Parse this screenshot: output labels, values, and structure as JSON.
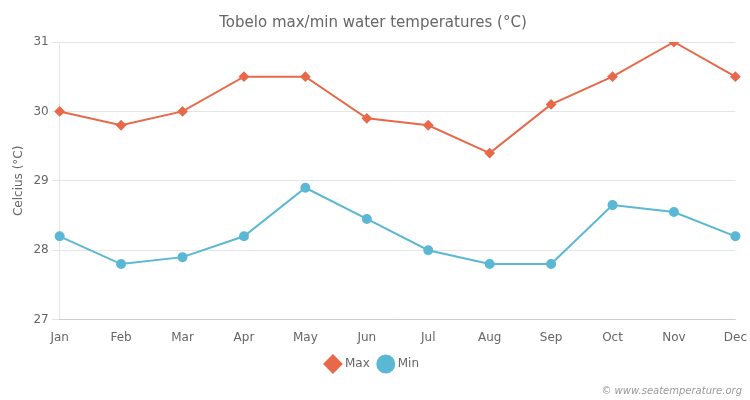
{
  "chart_data": {
    "type": "line",
    "title": "Tobelo max/min water temperatures (°C)",
    "ylabel": "Celcius (°C)",
    "categories": [
      "Jan",
      "Feb",
      "Mar",
      "Apr",
      "May",
      "Jun",
      "Jul",
      "Aug",
      "Sep",
      "Oct",
      "Nov",
      "Dec"
    ],
    "series": [
      {
        "name": "Max",
        "color": "#e8694a",
        "marker": "diamond",
        "values": [
          30.0,
          29.8,
          30.0,
          30.5,
          30.5,
          29.9,
          29.8,
          29.4,
          30.1,
          30.5,
          31.0,
          30.5
        ]
      },
      {
        "name": "Min",
        "color": "#5bb8d4",
        "marker": "circle",
        "values": [
          28.2,
          27.8,
          27.9,
          28.2,
          28.9,
          28.45,
          28.0,
          27.8,
          27.8,
          28.65,
          28.55,
          28.2
        ]
      }
    ],
    "ylim": [
      27,
      31
    ],
    "yticks": [
      27,
      28,
      29,
      30,
      31
    ],
    "grid": true,
    "legend": "bottom",
    "annotations": [
      "© www.seatemperature.org"
    ]
  }
}
